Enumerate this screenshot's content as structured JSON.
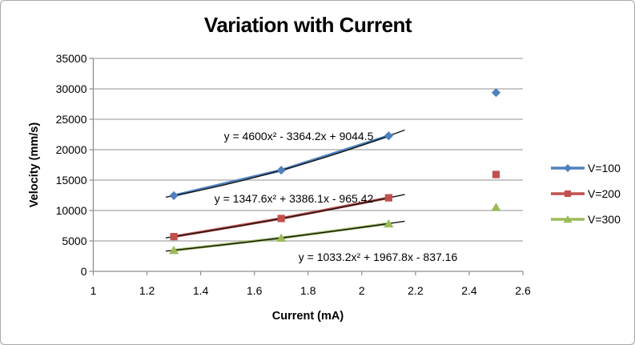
{
  "chart_data": {
    "type": "line",
    "title": "Variation with Current",
    "xlabel": "Current (mA)",
    "ylabel": "Velocity (mm/s)",
    "xlim": [
      1,
      2.6
    ],
    "ylim": [
      0,
      35000
    ],
    "xticks": [
      1,
      1.2,
      1.4,
      1.6,
      1.8,
      2,
      2.2,
      2.4,
      2.6
    ],
    "yticks": [
      0,
      5000,
      10000,
      15000,
      20000,
      25000,
      30000,
      35000
    ],
    "grid": "horizontal",
    "legend_position": "right",
    "x": [
      1.3,
      1.7,
      2.1,
      2.5
    ],
    "series": [
      {
        "name": "V=100",
        "color": "#4f81bd",
        "marker": "diamond",
        "values": [
          12450,
          16620,
          22270,
          29380
        ],
        "connected_points": 3,
        "trendline": {
          "label": "y = 4600x² - 3364.2x + 9044.5",
          "coefficients": {
            "a": 4600,
            "b": -3364.2,
            "c": 9044.5
          },
          "color": "#141414"
        }
      },
      {
        "name": "V=200",
        "color": "#c0504d",
        "marker": "square",
        "values": [
          5710,
          8690,
          12090,
          15920
        ],
        "connected_points": 3,
        "trendline": {
          "label": "y = 1347.6x² + 3386.1x - 965.42",
          "coefficients": {
            "a": 1347.6,
            "b": 3386.1,
            "c": -965.42
          },
          "color": "#141414"
        }
      },
      {
        "name": "V=300",
        "color": "#9bbb59",
        "marker": "triangle",
        "values": [
          3470,
          5490,
          7850,
          10540
        ],
        "connected_points": 3,
        "trendline": {
          "label": "y = 1033.2x² + 1967.8x - 837.16",
          "coefficients": {
            "a": 1033.2,
            "b": 1967.8,
            "c": -837.16
          },
          "color": "#141414"
        }
      }
    ],
    "colors": {
      "gridline": "#a8a8a8",
      "axis": "#8e8e8e",
      "background": "#ffffff",
      "frame_border": "#a9a9a9"
    }
  }
}
